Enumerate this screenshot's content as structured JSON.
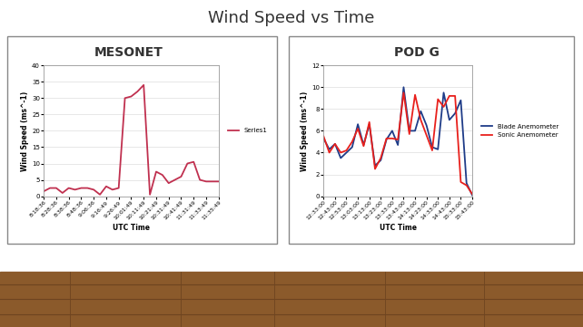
{
  "title": "Wind Speed vs Time",
  "chart_data": [
    {
      "type": "line",
      "title": "MESONET",
      "x_label": "UTC Time",
      "y_label": "Wind Speed (ms^-1)",
      "categories": [
        "8:18:36",
        null,
        "8:28:36",
        null,
        "8:38:36",
        null,
        "8:48:36",
        null,
        "9:06:36",
        null,
        "9:16:49",
        null,
        "9:26:49",
        null,
        "10:01:49",
        null,
        "10:11:49",
        null,
        "10:21:49",
        null,
        "10:31:49",
        null,
        "10:41:49",
        null,
        "11:31:49",
        null,
        "11:33:49",
        null,
        "11:35:49"
      ],
      "series": [
        {
          "name": "Series1",
          "color": "#c0304f",
          "values": [
            1.5,
            2.5,
            2.5,
            1,
            2.5,
            2,
            2.5,
            2.5,
            2,
            0.5,
            3,
            2,
            2.5,
            30,
            30.5,
            32,
            34,
            0.5,
            7.5,
            6.5,
            4,
            5,
            6,
            10,
            10.5,
            5,
            4.5,
            4.5,
            4.5
          ]
        }
      ],
      "ylim": [
        0,
        40
      ],
      "yticks": [
        0,
        5,
        10,
        15,
        20,
        25,
        30,
        35,
        40
      ],
      "grid": true,
      "legend": "right"
    },
    {
      "type": "line",
      "title": "POD G",
      "x_label": "UTC Time",
      "y_label": "Wind Speed (ms^-1)",
      "categories": [
        "12:33:00",
        null,
        "12:43:00",
        null,
        "12:53:00",
        null,
        "13:03:00",
        null,
        "13:13:00",
        null,
        "13:23:00",
        null,
        "13:33:00",
        null,
        "13:43:00",
        null,
        "14:13:00",
        null,
        "14:23:00",
        null,
        "14:33:00",
        null,
        "14:43:00",
        null,
        "15:33:00",
        null,
        "15:43:00"
      ],
      "series": [
        {
          "name": "Blade Anemometer",
          "color": "#1f3c88",
          "values": [
            5.3,
            4.3,
            4.8,
            3.5,
            4.0,
            4.5,
            6.6,
            4.7,
            6.6,
            2.8,
            3.3,
            5.2,
            6.0,
            4.7,
            10.0,
            6.0,
            6.0,
            7.8,
            6.5,
            4.5,
            4.3,
            9.5,
            7.0,
            7.6,
            8.8,
            1.2,
            0.1
          ]
        },
        {
          "name": "Sonic Anemometer",
          "color": "#e8201c",
          "values": [
            5.5,
            4.0,
            4.8,
            4.0,
            4.2,
            5.0,
            6.2,
            4.6,
            6.8,
            2.5,
            3.5,
            5.3,
            5.3,
            5.2,
            9.5,
            5.7,
            9.3,
            7.0,
            5.6,
            4.2,
            8.9,
            8.2,
            9.2,
            9.2,
            1.3,
            1.0,
            0.2
          ]
        }
      ],
      "ylim": [
        0,
        12
      ],
      "yticks": [
        0,
        2,
        4,
        6,
        8,
        10,
        12
      ],
      "grid": true,
      "legend": "right"
    }
  ]
}
